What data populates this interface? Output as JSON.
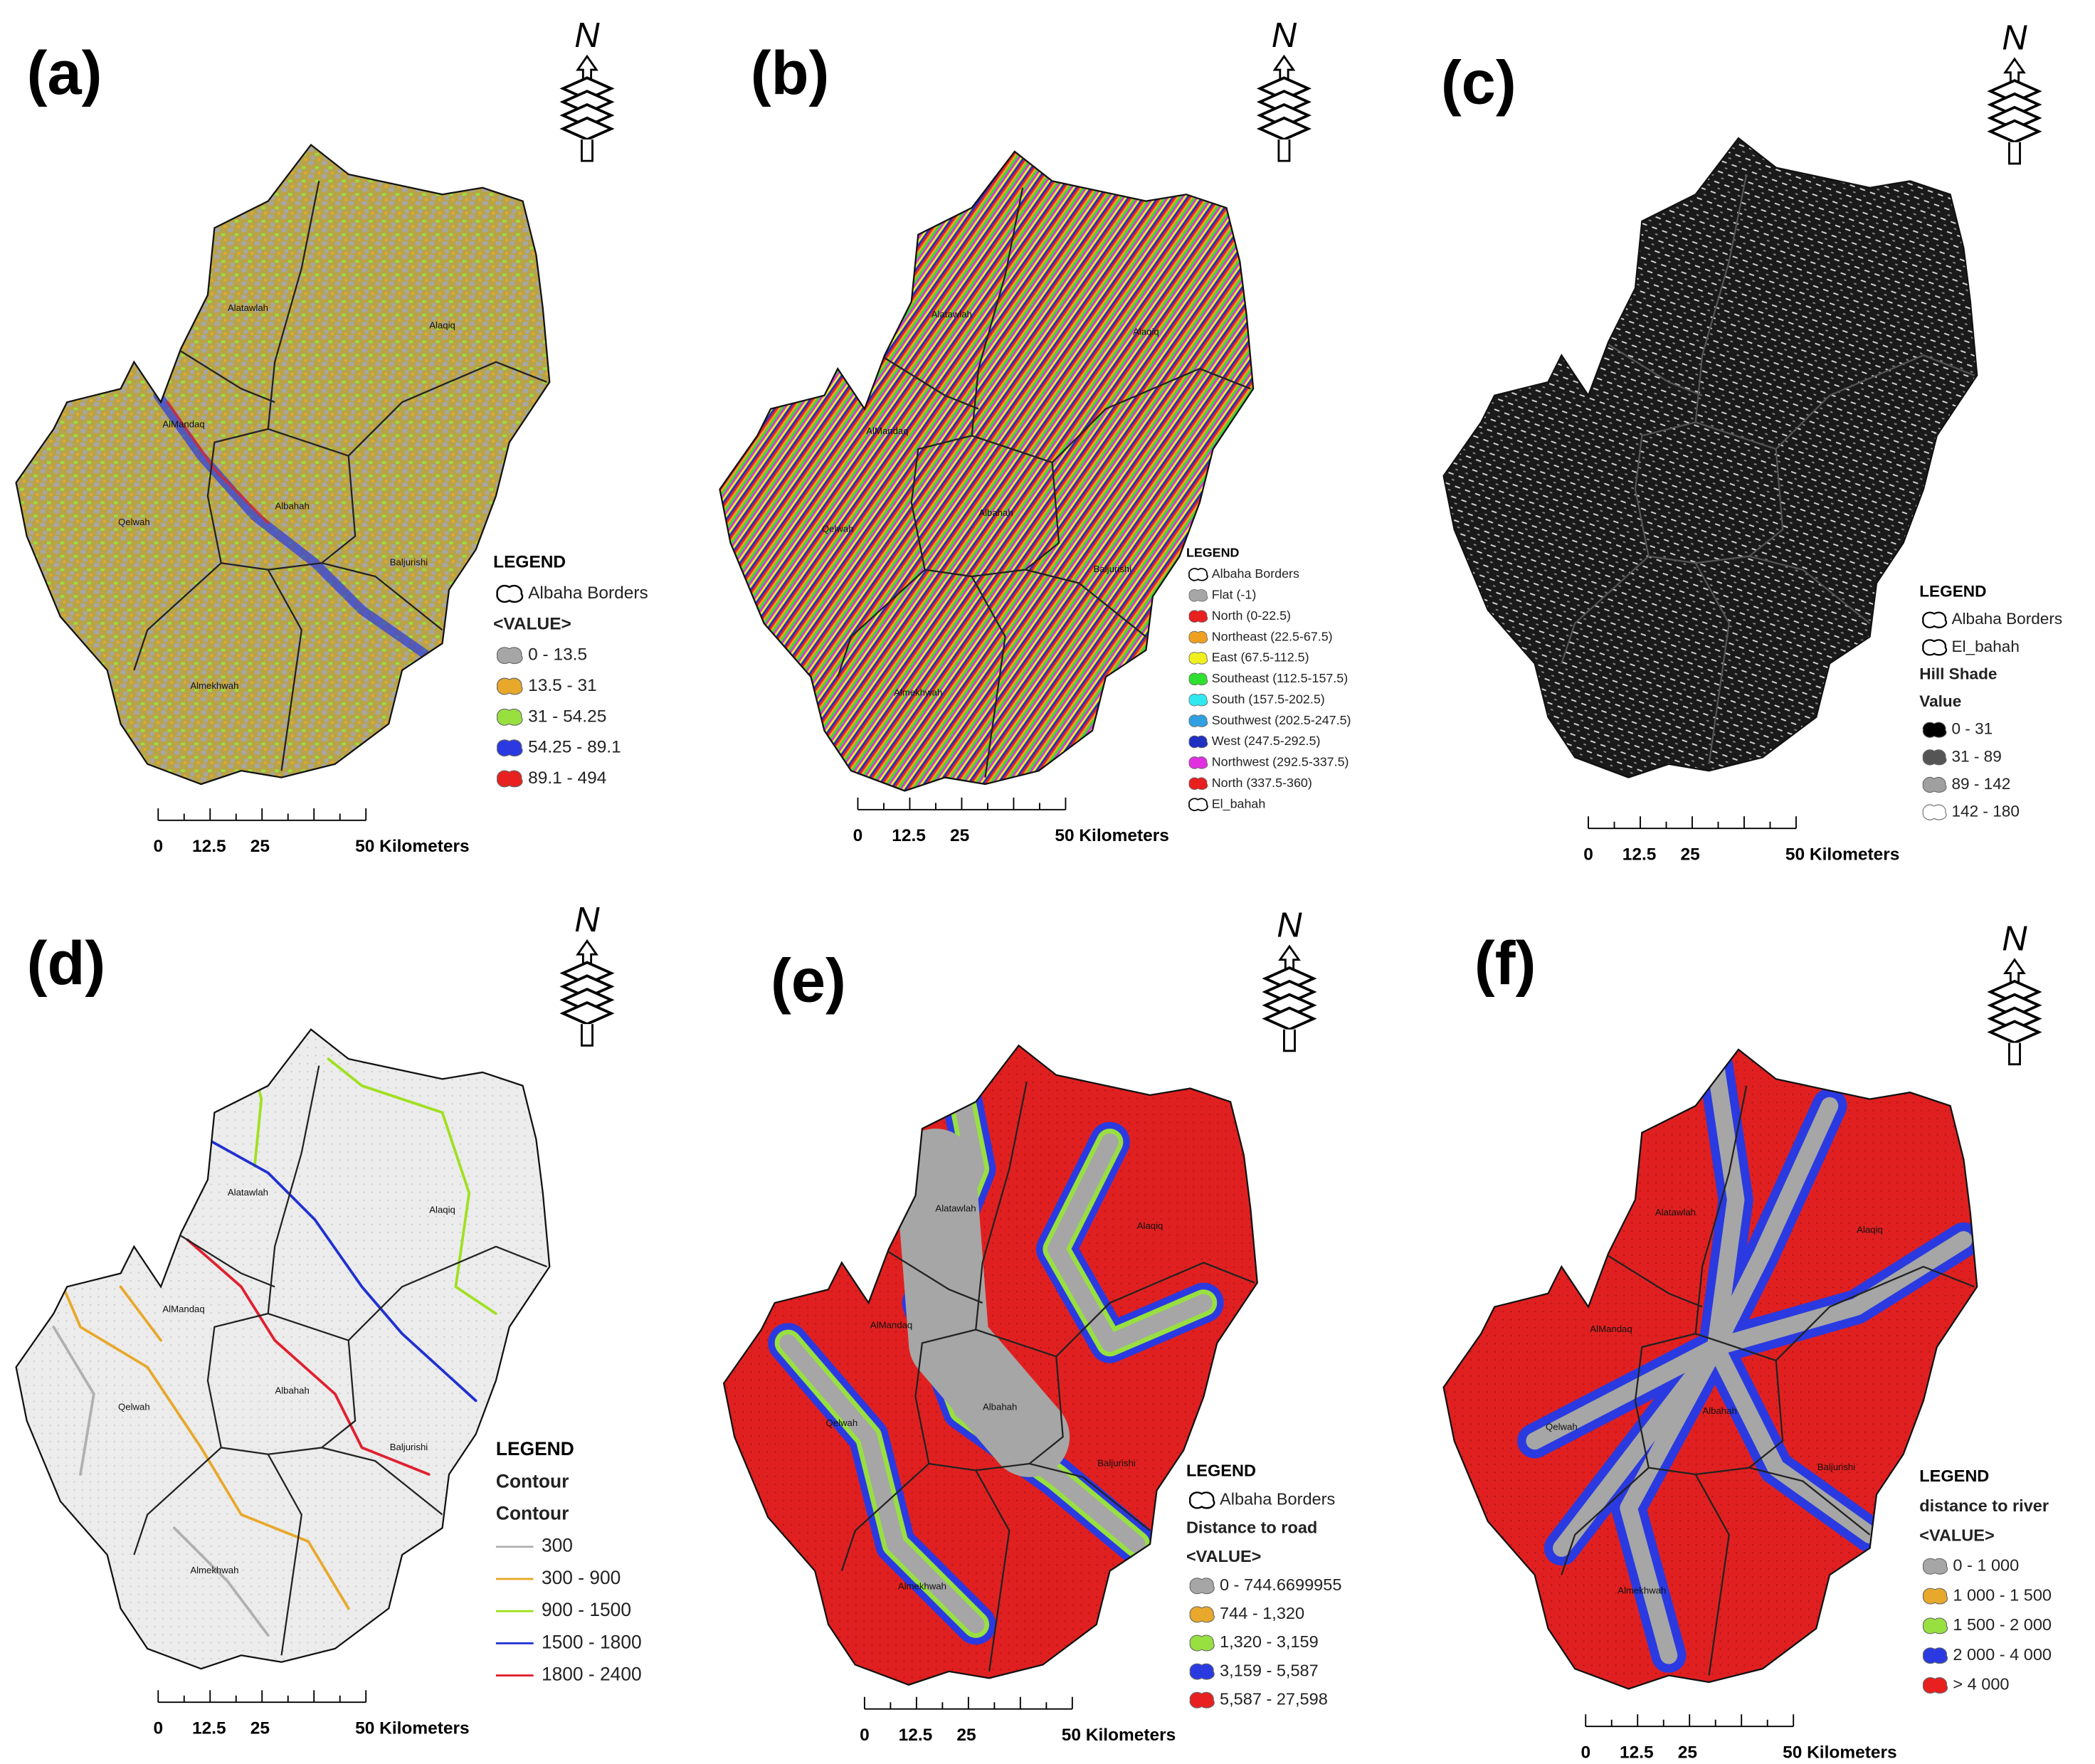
{
  "panels": [
    {
      "label": "(a)",
      "north": "N",
      "districts": [
        "Alatawlah",
        "Alaqiq",
        "AlMandaq",
        "Albahah",
        "Qelwah",
        "Baljurishi",
        "Almekhwah"
      ],
      "legend": {
        "title": "LEGEND",
        "entries": [
          {
            "label": "Albaha Borders",
            "symbol": "outline"
          },
          {
            "label": "<VALUE>"
          },
          {
            "label": "0 - 13.5",
            "color": "#a6a6a6"
          },
          {
            "label": "13.5 - 31",
            "color": "#e8a82c"
          },
          {
            "label": "31 - 54.25",
            "color": "#98e040"
          },
          {
            "label": "54.25 - 89.1",
            "color": "#2a3ae0"
          },
          {
            "label": "89.1 - 494",
            "color": "#e82020"
          }
        ]
      },
      "scale": [
        "0",
        "12.5",
        "25",
        "50 Kilometers"
      ]
    },
    {
      "label": "(b)",
      "north": "N",
      "districts": [
        "Alatawlah",
        "Alaqiq",
        "AlMandaq",
        "Albahah",
        "Qelwah",
        "Baljurishi",
        "Almekhwah"
      ],
      "legend": {
        "title": "LEGEND",
        "entries": [
          {
            "label": "Albaha Borders",
            "symbol": "outline"
          },
          {
            "label": "Flat (-1)",
            "color": "#a6a6a6"
          },
          {
            "label": "North (0-22.5)",
            "color": "#e82020"
          },
          {
            "label": "Northeast (22.5-67.5)",
            "color": "#f0a020"
          },
          {
            "label": "East (67.5-112.5)",
            "color": "#f0f020"
          },
          {
            "label": "Southeast (112.5-157.5)",
            "color": "#30e030"
          },
          {
            "label": "South (157.5-202.5)",
            "color": "#30e8f0"
          },
          {
            "label": "Southwest (202.5-247.5)",
            "color": "#30a0e0"
          },
          {
            "label": "West (247.5-292.5)",
            "color": "#2030c0"
          },
          {
            "label": "Northwest (292.5-337.5)",
            "color": "#e030e0"
          },
          {
            "label": "North (337.5-360)",
            "color": "#e82020"
          },
          {
            "label": "El_bahah",
            "symbol": "outline"
          }
        ]
      },
      "scale": [
        "0",
        "12.5",
        "25",
        "50 Kilometers"
      ]
    },
    {
      "label": "(c)",
      "north": "N",
      "legend": {
        "title": "LEGEND",
        "entries": [
          {
            "label": "Albaha Borders",
            "symbol": "outline"
          },
          {
            "label": "El_bahah",
            "symbol": "outline"
          },
          {
            "label": "Hill Shade"
          },
          {
            "label": "Value"
          },
          {
            "label": "0 - 31",
            "color": "#000000"
          },
          {
            "label": "31 - 89",
            "color": "#555555"
          },
          {
            "label": "89 - 142",
            "color": "#a0a0a0"
          },
          {
            "label": "142 - 180",
            "color": "#ffffff"
          }
        ]
      },
      "scale": [
        "0",
        "12.5",
        "25",
        "50 Kilometers"
      ]
    },
    {
      "label": "(d)",
      "north": "N",
      "districts": [
        "Alatawlah",
        "Alaqiq",
        "AlMandaq",
        "Albahah",
        "Qelwah",
        "Baljurishi",
        "Almekhwah"
      ],
      "legend": {
        "title": "LEGEND",
        "entries": [
          {
            "label": "Contour"
          },
          {
            "label": "Contour"
          },
          {
            "label": "300",
            "color": "#b0b0b0",
            "symbol": "line"
          },
          {
            "label": "300 - 900",
            "color": "#e8a82c",
            "symbol": "line"
          },
          {
            "label": "900 - 1500",
            "color": "#a0e020",
            "symbol": "line"
          },
          {
            "label": "1500 - 1800",
            "color": "#2030d0",
            "symbol": "line"
          },
          {
            "label": "1800 - 2400",
            "color": "#e02030",
            "symbol": "line"
          }
        ]
      },
      "scale": [
        "0",
        "12.5",
        "25",
        "50 Kilometers"
      ]
    },
    {
      "label": "(e)",
      "north": "N",
      "districts": [
        "Alatawlah",
        "Alaqiq",
        "AlMandaq",
        "Albahah",
        "Qelwah",
        "Baljurishi",
        "Almekhwah"
      ],
      "legend": {
        "title": "LEGEND",
        "entries": [
          {
            "label": "Albaha Borders",
            "symbol": "outline"
          },
          {
            "label": "Distance to road"
          },
          {
            "label": "<VALUE>"
          },
          {
            "label": "0 - 744.6699955",
            "color": "#a6a6a6"
          },
          {
            "label": "744 - 1,320",
            "color": "#e8a82c"
          },
          {
            "label": "1,320 - 3,159",
            "color": "#98e040"
          },
          {
            "label": "3,159 - 5,587",
            "color": "#2a3ae0"
          },
          {
            "label": "5,587 - 27,598",
            "color": "#e82020"
          }
        ]
      },
      "scale": [
        "0",
        "12.5",
        "25",
        "50 Kilometers"
      ]
    },
    {
      "label": "(f)",
      "north": "N",
      "districts": [
        "Alatawlah",
        "Alaqiq",
        "AlMandaq",
        "Albahah",
        "Qelwah",
        "Baljurishi",
        "Almekhwah"
      ],
      "legend": {
        "title": "LEGEND",
        "entries": [
          {
            "label": "distance to river"
          },
          {
            "label": "<VALUE>"
          },
          {
            "label": "0 - 1 000",
            "color": "#a6a6a6"
          },
          {
            "label": "1 000 - 1 500",
            "color": "#e8a82c"
          },
          {
            "label": "1 500 - 2 000",
            "color": "#98e040"
          },
          {
            "label": "2 000 - 4 000",
            "color": "#2a3ae0"
          },
          {
            "label": "> 4 000",
            "color": "#e82020"
          }
        ]
      },
      "scale": [
        "0",
        "12.5",
        "25",
        "50 Kilometers"
      ]
    }
  ]
}
